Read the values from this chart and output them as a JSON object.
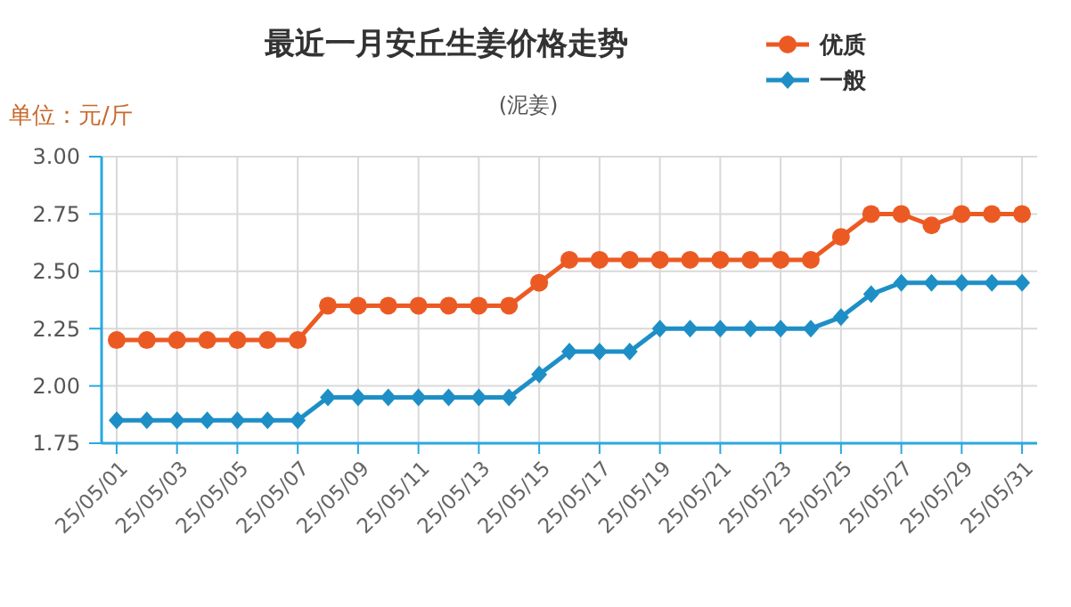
{
  "chart_data": {
    "type": "line",
    "title": "最近一月安丘生姜价格走势",
    "subtitle": "(泥姜)",
    "ylabel": "单位：元/斤",
    "categories": [
      "25/05/01",
      null,
      "25/05/03",
      null,
      "25/05/05",
      null,
      "25/05/07",
      null,
      "25/05/09",
      null,
      "25/05/11",
      null,
      "25/05/13",
      null,
      "25/05/15",
      null,
      "25/05/17",
      null,
      "25/05/19",
      null,
      "25/05/21",
      null,
      "25/05/23",
      null,
      "25/05/25",
      null,
      "25/05/27",
      null,
      "25/05/29",
      null,
      "25/05/31"
    ],
    "series": [
      {
        "name": "优质",
        "color": "#ec5a24",
        "marker": "circle",
        "values": [
          2.2,
          2.2,
          2.2,
          2.2,
          2.2,
          2.2,
          2.2,
          2.35,
          2.35,
          2.35,
          2.35,
          2.35,
          2.35,
          2.35,
          2.45,
          2.55,
          2.55,
          2.55,
          2.55,
          2.55,
          2.55,
          2.55,
          2.55,
          2.55,
          2.65,
          2.75,
          2.75,
          2.7,
          2.75,
          2.75,
          2.75
        ]
      },
      {
        "name": "一般",
        "color": "#1e8fc6",
        "marker": "diamond",
        "values": [
          1.85,
          1.85,
          1.85,
          1.85,
          1.85,
          1.85,
          1.85,
          1.95,
          1.95,
          1.95,
          1.95,
          1.95,
          1.95,
          1.95,
          2.05,
          2.15,
          2.15,
          2.15,
          2.25,
          2.25,
          2.25,
          2.25,
          2.25,
          2.25,
          2.3,
          2.4,
          2.45,
          2.45,
          2.45,
          2.45,
          2.45
        ]
      }
    ],
    "ylim": [
      1.75,
      3
    ],
    "yticks": [
      {
        "value": 1.75,
        "label": "1.75"
      },
      {
        "value": 2,
        "label": "2.00"
      },
      {
        "value": 2.25,
        "label": "2.25"
      },
      {
        "value": 2.5,
        "label": "2.50"
      },
      {
        "value": 2.75,
        "label": "2.75"
      },
      {
        "value": 3,
        "label": "3.00"
      }
    ],
    "grid": true,
    "legend": "top right",
    "line_style": "solid"
  }
}
